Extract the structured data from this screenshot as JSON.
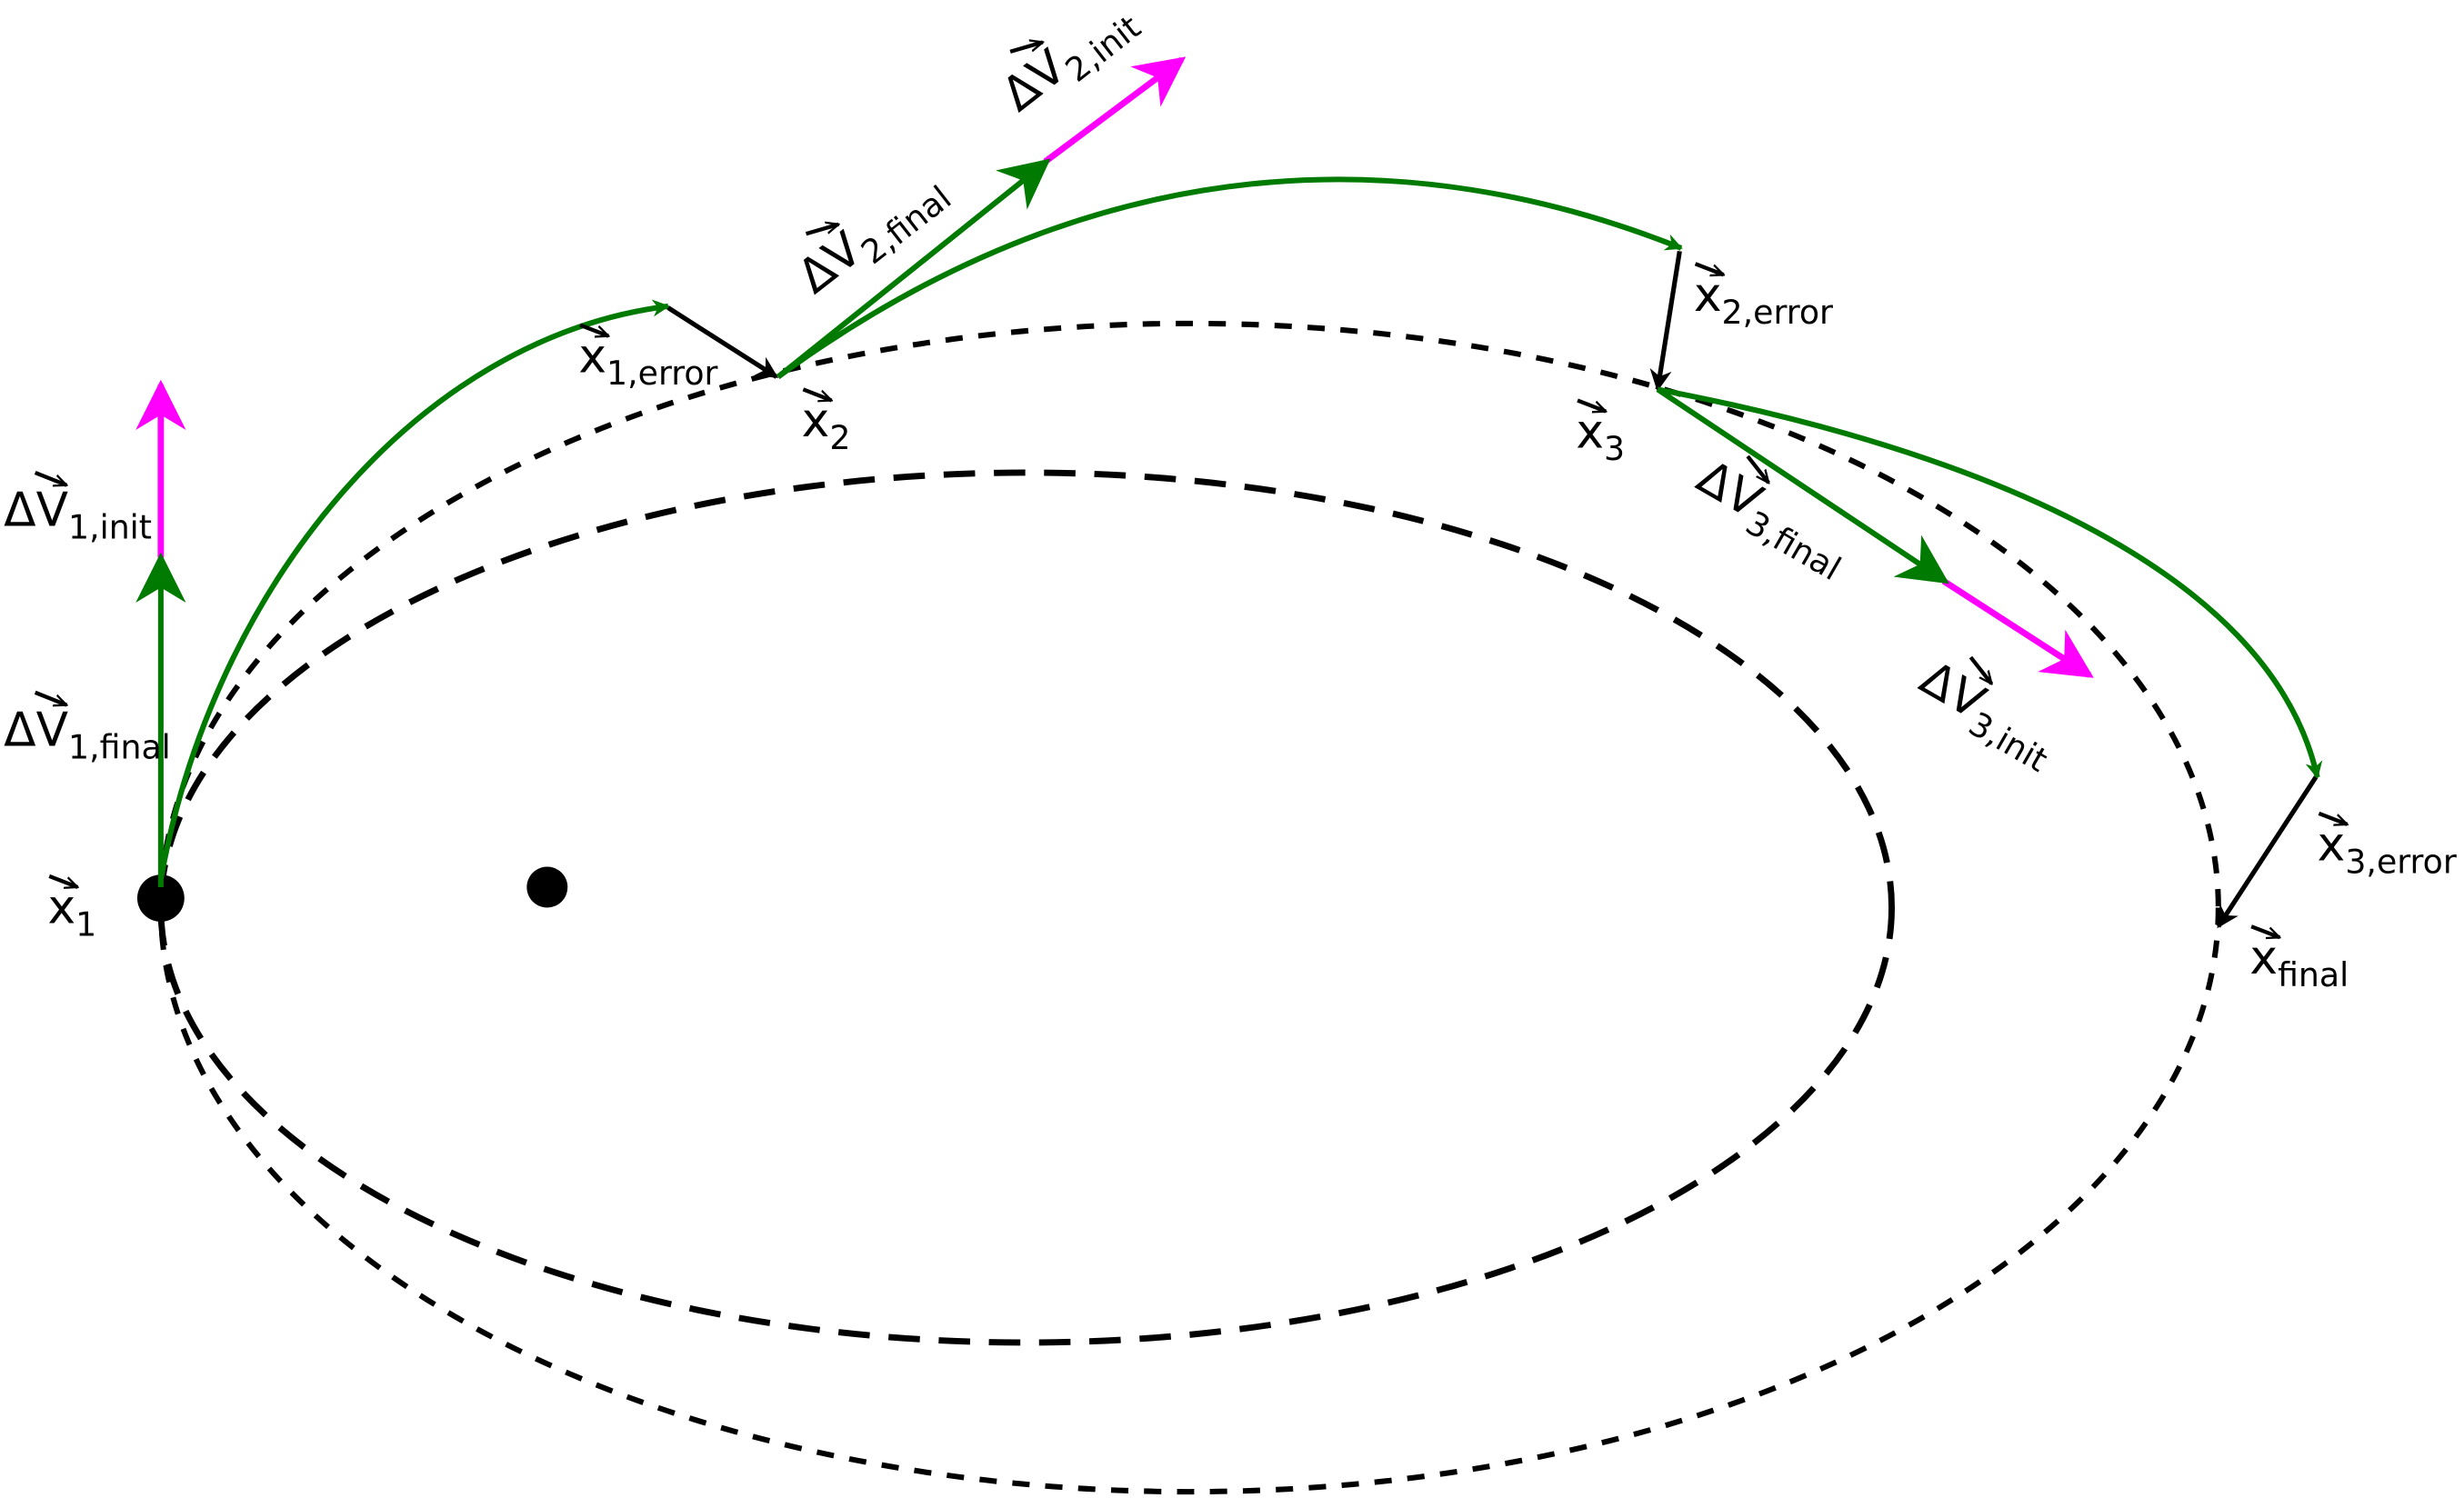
{
  "colors": {
    "trajectory": "#007a00",
    "init_dv": "#ff00ff",
    "error": "#000000",
    "orbit": "#000000"
  },
  "labels": {
    "dv1_init": {
      "main": "ΔV",
      "sub": "1,init"
    },
    "dv1_final": {
      "main": "ΔV",
      "sub": "1,final"
    },
    "x1": {
      "main": "x",
      "sub": "1"
    },
    "x1_error": {
      "main": "x",
      "sub": "1,error"
    },
    "x2": {
      "main": "x",
      "sub": "2"
    },
    "dv2_final": {
      "main": "ΔV",
      "sub": "2,final"
    },
    "dv2_init": {
      "main": "ΔV",
      "sub": "2,init"
    },
    "x2_error": {
      "main": "x",
      "sub": "2,error"
    },
    "x3": {
      "main": "x",
      "sub": "3"
    },
    "dv3_final": {
      "main": "ΔV",
      "sub": "3,final"
    },
    "dv3_init": {
      "main": "ΔV",
      "sub": "3,init"
    },
    "x3_error": {
      "main": "x",
      "sub": "3,error"
    },
    "x_final": {
      "main": "x",
      "sub": "final"
    }
  }
}
